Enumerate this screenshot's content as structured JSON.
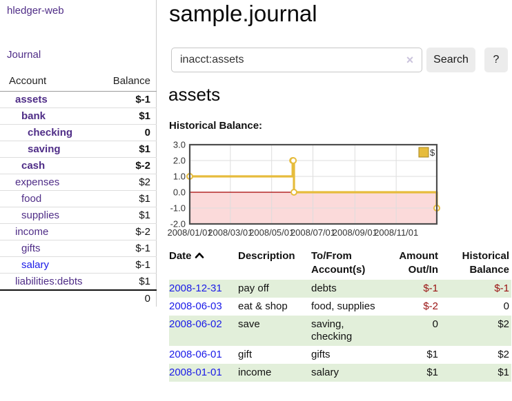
{
  "sidebar": {
    "brand": "hledger-web",
    "nav": {
      "journal": "Journal"
    },
    "table": {
      "account_header": "Account",
      "balance_header": "Balance"
    },
    "accounts": [
      {
        "name": "assets",
        "balance": "$-1",
        "indent": 1,
        "bold": true,
        "balance_color": "neg-strong"
      },
      {
        "name": "bank",
        "balance": "$1",
        "indent": 2,
        "bold": true,
        "balance_color": ""
      },
      {
        "name": "checking",
        "balance": "0",
        "indent": 3,
        "bold": true,
        "balance_color": ""
      },
      {
        "name": "saving",
        "balance": "$1",
        "indent": 3,
        "bold": true,
        "balance_color": ""
      },
      {
        "name": "cash",
        "balance": "$-2",
        "indent": 2,
        "bold": true,
        "balance_color": "neg-strong"
      },
      {
        "name": "expenses",
        "balance": "$2",
        "indent": 1,
        "bold": false,
        "balance_color": ""
      },
      {
        "name": "food",
        "balance": "$1",
        "indent": 2,
        "bold": false,
        "balance_color": ""
      },
      {
        "name": "supplies",
        "balance": "$1",
        "indent": 2,
        "bold": false,
        "balance_color": ""
      },
      {
        "name": "income",
        "balance": "$-2",
        "indent": 1,
        "bold": false,
        "balance_color": "neg-faded"
      },
      {
        "name": "gifts",
        "balance": "$-1",
        "indent": 2,
        "bold": false,
        "balance_color": "neg-faded"
      },
      {
        "name": "salary",
        "balance": "$-1",
        "indent": 2,
        "bold": false,
        "balance_color": "neg-faded",
        "link_color": "blue"
      },
      {
        "name": "liabilities:debts",
        "balance": "$1",
        "indent": 1,
        "bold": false,
        "balance_color": ""
      }
    ],
    "total": "0"
  },
  "header": {
    "title": "sample.journal"
  },
  "search": {
    "value": "inacct:assets",
    "clear_icon": "×",
    "button_label": "Search",
    "help_label": "?"
  },
  "account_page": {
    "title": "assets",
    "chart_label": "Historical Balance:"
  },
  "chart_data": {
    "type": "line",
    "title": "Historical Balance:",
    "style": "step-after",
    "series": [
      {
        "name": "$",
        "points": [
          [
            "2008-01-01",
            1
          ],
          [
            "2008-06-01",
            2
          ],
          [
            "2008-06-02",
            2
          ],
          [
            "2008-06-03",
            0
          ],
          [
            "2008-12-31",
            -1
          ]
        ]
      }
    ],
    "xlim": [
      "2008-01-01",
      "2008-12-31"
    ],
    "ylim": [
      -2,
      3
    ],
    "y_ticks": [
      3.0,
      2.0,
      1.0,
      0.0,
      -1.0,
      -2.0
    ],
    "x_ticks": [
      "2008/01/01",
      "2008/03/01",
      "2008/05/01",
      "2008/07/01",
      "2008/09/01",
      "2008/11/01"
    ],
    "legend": {
      "label": "$",
      "position": "top-right"
    },
    "grid": true,
    "line_color": "#e6bc3c",
    "marker_fill": "#ffffff",
    "negative_region_color": "#fbdada",
    "zero_line_color": "#a40000",
    "border_color": "#4d4d4d",
    "grid_color": "#dddddd"
  },
  "register": {
    "columns": {
      "date": "Date",
      "description": "Description",
      "accounts": "To/From\nAccount(s)",
      "amount": "Amount\nOut/In",
      "balance": "Historical\nBalance"
    },
    "rows": [
      {
        "date": "2008-12-31",
        "description": "pay off",
        "accounts": "debts",
        "amount": "$-1",
        "balance": "$-1",
        "amount_neg": true,
        "balance_neg": true
      },
      {
        "date": "2008-06-03",
        "description": "eat & shop",
        "accounts": "food, supplies",
        "amount": "$-2",
        "balance": "0",
        "amount_neg": true,
        "balance_neg": false
      },
      {
        "date": "2008-06-02",
        "description": "save",
        "accounts": "saving,\nchecking",
        "amount": "0",
        "balance": "$2",
        "amount_neg": false,
        "balance_neg": false
      },
      {
        "date": "2008-06-01",
        "description": "gift",
        "accounts": "gifts",
        "amount": "$1",
        "balance": "$2",
        "amount_neg": false,
        "balance_neg": false
      },
      {
        "date": "2008-01-01",
        "description": "income",
        "accounts": "salary",
        "amount": "$1",
        "balance": "$1",
        "amount_neg": false,
        "balance_neg": false
      }
    ]
  },
  "colors": {
    "link_purple": "#4f2d87",
    "link_blue": "#1a1ae8",
    "negative": "#991111",
    "negative_faded": "#c26a6a",
    "row_green": "#e2efda",
    "chart_line": "#e6bc3c",
    "chart_negative_bg": "#fbdada",
    "zero_line": "#a40000"
  }
}
